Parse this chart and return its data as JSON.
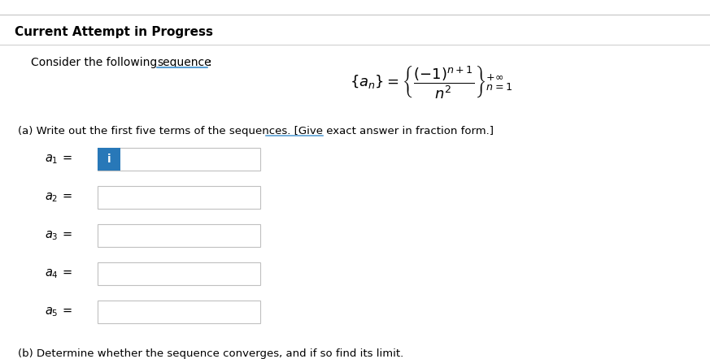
{
  "bg_color": "#ffffff",
  "header_text": "Current Attempt in Progress",
  "part_a_text": "(a) Write out the first five terms of the sequences. [Give exact answer in fraction form.]",
  "part_b_text": "(b) Determine whether the sequence converges, and if so find its limit.",
  "input_box_color": "#ffffff",
  "input_box_edge": "#c0c0c0",
  "a1_fill": "#2878b8",
  "i_color": "#ffffff",
  "text_color": "#000000",
  "underline_color": "#5a9fd4",
  "figure_width": 8.73,
  "figure_height": 4.42,
  "dpi": 100
}
